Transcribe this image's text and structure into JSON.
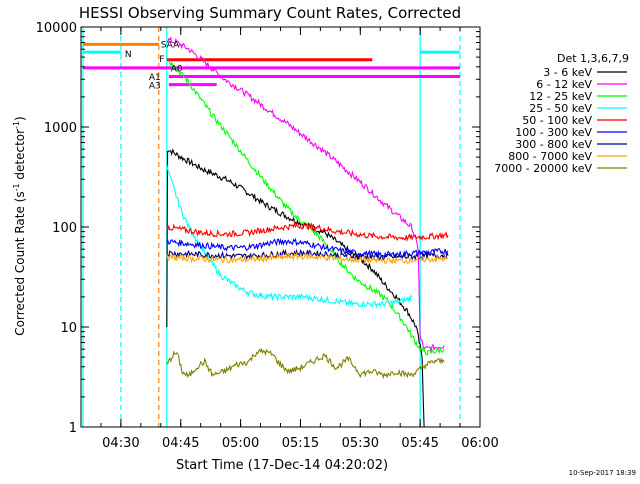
{
  "chart_data": {
    "type": "line",
    "title": "HESSI Observing Summary Count Rates, Corrected",
    "xlabel": "Start Time (17-Dec-14 04:20:02)",
    "ylabel_main": "Corrected Count Rate (s",
    "ylabel_sup1": "-1",
    "ylabel_mid": " detector",
    "ylabel_sup2": "-1",
    "ylabel_end": ")",
    "yscale": "log",
    "ylim": [
      1,
      10000
    ],
    "xlim_minutes": [
      0,
      100
    ],
    "yticks": [
      {
        "value": 1,
        "label": "1"
      },
      {
        "value": 10,
        "label": "10"
      },
      {
        "value": 100,
        "label": "100"
      },
      {
        "value": 1000,
        "label": "1000"
      },
      {
        "value": 10000,
        "label": "10000"
      }
    ],
    "xticks": [
      {
        "minute": 10,
        "label": "04:30"
      },
      {
        "minute": 25,
        "label": "04:45"
      },
      {
        "minute": 40,
        "label": "05:00"
      },
      {
        "minute": 55,
        "label": "05:15"
      },
      {
        "minute": 70,
        "label": "05:30"
      },
      {
        "minute": 85,
        "label": "05:45"
      },
      {
        "minute": 100,
        "label": "06:00"
      }
    ],
    "legend_title": "Det 1,3,6,7,9",
    "legend_placement": "right",
    "series": [
      {
        "name": "3 - 6 keV",
        "color": "#000000",
        "points": [
          [
            21.5,
            10
          ],
          [
            21.7,
            600
          ],
          [
            23,
            560
          ],
          [
            25,
            500
          ],
          [
            28,
            430
          ],
          [
            31,
            370
          ],
          [
            34,
            330
          ],
          [
            37,
            290
          ],
          [
            40,
            245
          ],
          [
            43,
            205
          ],
          [
            46,
            170
          ],
          [
            49,
            145
          ],
          [
            52,
            125
          ],
          [
            55,
            110
          ],
          [
            58,
            98
          ],
          [
            61,
            88
          ],
          [
            64,
            72
          ],
          [
            67,
            58
          ],
          [
            70,
            48
          ],
          [
            73,
            38
          ],
          [
            76,
            27
          ],
          [
            79,
            20
          ],
          [
            82,
            14
          ],
          [
            84,
            10
          ],
          [
            85.5,
            5
          ],
          [
            86,
            1
          ]
        ]
      },
      {
        "name": "6 - 12 keV",
        "color": "#ff00ff",
        "points": [
          [
            21.5,
            7500
          ],
          [
            24,
            7000
          ],
          [
            27,
            6000
          ],
          [
            30,
            4800
          ],
          [
            33,
            3800
          ],
          [
            36,
            3000
          ],
          [
            40,
            2350
          ],
          [
            44,
            1800
          ],
          [
            48,
            1380
          ],
          [
            52,
            1060
          ],
          [
            56,
            800
          ],
          [
            60,
            610
          ],
          [
            64,
            450
          ],
          [
            68,
            330
          ],
          [
            72,
            240
          ],
          [
            75,
            185
          ],
          [
            78,
            145
          ],
          [
            81,
            115
          ],
          [
            83,
            98
          ],
          [
            84.5,
            60
          ],
          [
            85,
            8
          ],
          [
            86,
            6
          ],
          [
            91,
            6.5
          ]
        ]
      },
      {
        "name": "12 - 25 keV",
        "color": "#00ff00",
        "points": [
          [
            21.5,
            4800
          ],
          [
            24,
            3800
          ],
          [
            27,
            2800
          ],
          [
            30,
            1900
          ],
          [
            33,
            1300
          ],
          [
            36,
            920
          ],
          [
            39,
            650
          ],
          [
            42,
            450
          ],
          [
            45,
            320
          ],
          [
            48,
            230
          ],
          [
            51,
            165
          ],
          [
            54,
            125
          ],
          [
            57,
            100
          ],
          [
            60,
            78
          ],
          [
            63,
            55
          ],
          [
            66,
            40
          ],
          [
            69,
            30
          ],
          [
            72,
            25
          ],
          [
            75,
            21
          ],
          [
            77,
            18
          ],
          [
            79,
            14
          ],
          [
            81,
            11
          ],
          [
            83,
            8
          ],
          [
            85,
            6
          ],
          [
            87,
            5.5
          ],
          [
            91,
            6
          ]
        ]
      },
      {
        "name": "25 - 50 keV",
        "color": "#00ffff",
        "points": [
          [
            21.5,
            400
          ],
          [
            23,
            260
          ],
          [
            25,
            150
          ],
          [
            27,
            100
          ],
          [
            29,
            75
          ],
          [
            31,
            55
          ],
          [
            33,
            42
          ],
          [
            35,
            33
          ],
          [
            38,
            27
          ],
          [
            41,
            23
          ],
          [
            44,
            21
          ],
          [
            48,
            20
          ],
          [
            52,
            20
          ],
          [
            56,
            20
          ],
          [
            60,
            19
          ],
          [
            64,
            18
          ],
          [
            68,
            17
          ],
          [
            72,
            17
          ],
          [
            76,
            17
          ],
          [
            80,
            18
          ],
          [
            82,
            19
          ],
          [
            83,
            20
          ]
        ]
      },
      {
        "name": "50 - 100 keV",
        "color": "#ff0000",
        "points": [
          [
            21.5,
            100
          ],
          [
            24,
            96
          ],
          [
            27,
            92
          ],
          [
            30,
            88
          ],
          [
            33,
            86
          ],
          [
            36,
            85
          ],
          [
            39,
            86
          ],
          [
            42,
            88
          ],
          [
            45,
            92
          ],
          [
            48,
            96
          ],
          [
            51,
            100
          ],
          [
            54,
            103
          ],
          [
            57,
            102
          ],
          [
            60,
            98
          ],
          [
            63,
            92
          ],
          [
            66,
            88
          ],
          [
            69,
            85
          ],
          [
            72,
            82
          ],
          [
            75,
            80
          ],
          [
            78,
            79
          ],
          [
            81,
            78
          ],
          [
            84,
            79
          ],
          [
            87,
            80
          ],
          [
            90,
            82
          ],
          [
            92,
            83
          ]
        ]
      },
      {
        "name": "100 - 300 keV",
        "color": "#0000ff",
        "points": [
          [
            21.5,
            72
          ],
          [
            24,
            70
          ],
          [
            27,
            68
          ],
          [
            30,
            66
          ],
          [
            33,
            64
          ],
          [
            36,
            62
          ],
          [
            39,
            62
          ],
          [
            42,
            63
          ],
          [
            45,
            66
          ],
          [
            48,
            70
          ],
          [
            51,
            72
          ],
          [
            54,
            71
          ],
          [
            57,
            68
          ],
          [
            60,
            64
          ],
          [
            63,
            60
          ],
          [
            66,
            57
          ],
          [
            69,
            55
          ],
          [
            72,
            54
          ],
          [
            75,
            53
          ],
          [
            78,
            53
          ],
          [
            81,
            54
          ],
          [
            84,
            55
          ],
          [
            87,
            56
          ],
          [
            90,
            57
          ],
          [
            92,
            58
          ]
        ]
      },
      {
        "name": "300 - 800 keV",
        "color": "#000080",
        "points": [
          [
            21.5,
            55
          ],
          [
            25,
            54
          ],
          [
            30,
            53
          ],
          [
            35,
            52
          ],
          [
            40,
            51
          ],
          [
            45,
            52
          ],
          [
            50,
            54
          ],
          [
            55,
            55
          ],
          [
            60,
            54
          ],
          [
            65,
            52
          ],
          [
            70,
            51
          ],
          [
            75,
            50
          ],
          [
            80,
            50
          ],
          [
            85,
            51
          ],
          [
            90,
            52
          ],
          [
            92,
            52
          ]
        ]
      },
      {
        "name": "800 - 7000 keV",
        "color": "#ffa500",
        "points": [
          [
            21.5,
            50
          ],
          [
            25,
            49
          ],
          [
            30,
            48
          ],
          [
            35,
            47
          ],
          [
            40,
            47
          ],
          [
            45,
            48
          ],
          [
            50,
            50
          ],
          [
            55,
            51
          ],
          [
            60,
            50
          ],
          [
            65,
            48
          ],
          [
            70,
            47
          ],
          [
            75,
            46
          ],
          [
            80,
            46
          ],
          [
            85,
            47
          ],
          [
            90,
            48
          ],
          [
            92,
            48
          ]
        ]
      },
      {
        "name": "7000 - 20000 keV",
        "color": "#808000",
        "points": [
          [
            21.5,
            4.2
          ],
          [
            23,
            5.2
          ],
          [
            24,
            5.5
          ],
          [
            25.5,
            3.5
          ],
          [
            27,
            3.2
          ],
          [
            29,
            4
          ],
          [
            31,
            4.5
          ],
          [
            33,
            3.3
          ],
          [
            36,
            3.6
          ],
          [
            39,
            4.2
          ],
          [
            42,
            4.5
          ],
          [
            44,
            5.6
          ],
          [
            46,
            5.7
          ],
          [
            48,
            5.3
          ],
          [
            50,
            4.2
          ],
          [
            52,
            3.6
          ],
          [
            55,
            3.9
          ],
          [
            58,
            4.5
          ],
          [
            61,
            5.2
          ],
          [
            64,
            3.9
          ],
          [
            67,
            4.8
          ],
          [
            70,
            3.4
          ],
          [
            73,
            3.6
          ],
          [
            76,
            3.3
          ],
          [
            79,
            3.6
          ],
          [
            82,
            3.3
          ],
          [
            84,
            3.5
          ],
          [
            86,
            4.1
          ],
          [
            89,
            4.6
          ],
          [
            91,
            4.5
          ]
        ]
      }
    ],
    "annotations": {
      "flags": [
        {
          "label": "SAA",
          "color": "#ff7f00",
          "y": 6700,
          "x_start": 0.5,
          "x_end": 19.5,
          "dashed": false
        },
        {
          "label": "N",
          "color": "#00ffff",
          "y": 5600,
          "x_start": 0.5,
          "x_end": 10,
          "dashed": false
        },
        {
          "label": "N",
          "color": "#00ffff",
          "y": 5600,
          "x_start": 85,
          "x_end": 95,
          "dashed": false
        },
        {
          "label": "F",
          "color": "#ff0000",
          "y": 4700,
          "x_start": 21.5,
          "x_end": 73,
          "dashed": false
        },
        {
          "label": "A0",
          "color": "#ff00ff",
          "y": 3900,
          "x_start": 0.5,
          "x_end": 95,
          "dashed": false
        },
        {
          "label": "A1",
          "color": "#ff00ff",
          "y": 3200,
          "x_start": 22,
          "x_end": 95,
          "dashed": false
        },
        {
          "label": "A3",
          "color": "#ff00ff",
          "y": 2650,
          "x_start": 22,
          "x_end": 34,
          "dashed": false
        }
      ],
      "vlines": [
        {
          "minute": 0.5,
          "color": "#00ffff",
          "dashed": false
        },
        {
          "minute": 10,
          "color": "#00ffff",
          "dashed": true
        },
        {
          "minute": 19.5,
          "color": "#ff7f00",
          "dashed": true
        },
        {
          "minute": 21.5,
          "color": "#00ffff",
          "dashed": false
        },
        {
          "minute": 85,
          "color": "#00ffff",
          "dashed": false
        },
        {
          "minute": 95,
          "color": "#00ffff",
          "dashed": true
        }
      ],
      "labels": [
        {
          "text": "SAA",
          "color": "#ff7f00",
          "minute": 20,
          "value": 6800
        },
        {
          "text": "N",
          "color": "#00ffff",
          "minute": 11,
          "value": 5500
        },
        {
          "text": "F",
          "color": "#ff0000",
          "minute": 19.6,
          "value": 4900
        },
        {
          "text": "A0",
          "color": "#ff00ff",
          "minute": 22.5,
          "value": 3950
        },
        {
          "text": "A1",
          "color": "#ff00ff",
          "minute": 17,
          "value": 3250
        },
        {
          "text": "A3",
          "color": "#ff00ff",
          "minute": 17,
          "value": 2650
        }
      ]
    },
    "footer": "10-Sep-2017 18:39"
  }
}
